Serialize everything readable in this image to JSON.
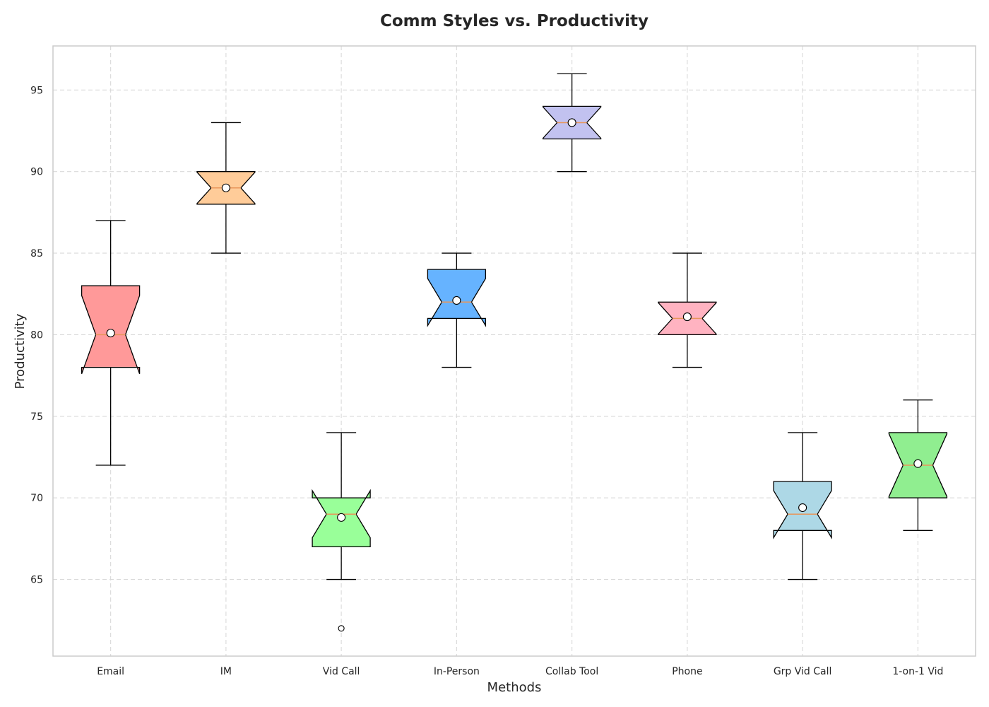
{
  "chart_data": {
    "type": "box",
    "title": "Comm Styles vs. Productivity",
    "xlabel": "Methods",
    "ylabel": "Productivity",
    "ylim": [
      60.3,
      97.7
    ],
    "yticks": [
      65,
      70,
      75,
      80,
      85,
      90,
      95
    ],
    "grid": true,
    "notched": true,
    "show_means": true,
    "categories": [
      "Email",
      "IM",
      "Vid Call",
      "In-Person",
      "Collab Tool",
      "Phone",
      "Grp Vid Call",
      "1-on-1 Vid"
    ],
    "boxes": [
      {
        "name": "Email",
        "whisker_low": 72,
        "q1": 78,
        "median": 80,
        "q3": 83,
        "whisker_high": 87,
        "mean": 80.1,
        "outliers": [],
        "color": "#ff9999"
      },
      {
        "name": "IM",
        "whisker_low": 85,
        "q1": 88,
        "median": 89,
        "q3": 90,
        "whisker_high": 93,
        "mean": 89.0,
        "outliers": [],
        "color": "#ffcc99"
      },
      {
        "name": "Vid Call",
        "whisker_low": 65,
        "q1": 67,
        "median": 69,
        "q3": 70,
        "whisker_high": 74,
        "mean": 68.8,
        "outliers": [
          62
        ],
        "color": "#99ff99"
      },
      {
        "name": "In-Person",
        "whisker_low": 78,
        "q1": 81,
        "median": 82,
        "q3": 84,
        "whisker_high": 85,
        "mean": 82.1,
        "outliers": [],
        "color": "#66b3ff"
      },
      {
        "name": "Collab Tool",
        "whisker_low": 90,
        "q1": 92,
        "median": 93,
        "q3": 94,
        "whisker_high": 96,
        "mean": 93.0,
        "outliers": [],
        "color": "#c2c2f0"
      },
      {
        "name": "Phone",
        "whisker_low": 78,
        "q1": 80,
        "median": 81,
        "q3": 82,
        "whisker_high": 85,
        "mean": 81.1,
        "outliers": [],
        "color": "#ffb3c1"
      },
      {
        "name": "Grp Vid Call",
        "whisker_low": 65,
        "q1": 68,
        "median": 69,
        "q3": 71,
        "whisker_high": 74,
        "mean": 69.4,
        "outliers": [],
        "color": "#add8e6"
      },
      {
        "name": "1-on-1 Vid",
        "whisker_low": 68,
        "q1": 70,
        "median": 72,
        "q3": 74,
        "whisker_high": 76,
        "mean": 72.1,
        "outliers": [],
        "color": "#90ee90"
      }
    ],
    "median_color": "#e8965a",
    "mean_marker_color": "#ffffff"
  }
}
